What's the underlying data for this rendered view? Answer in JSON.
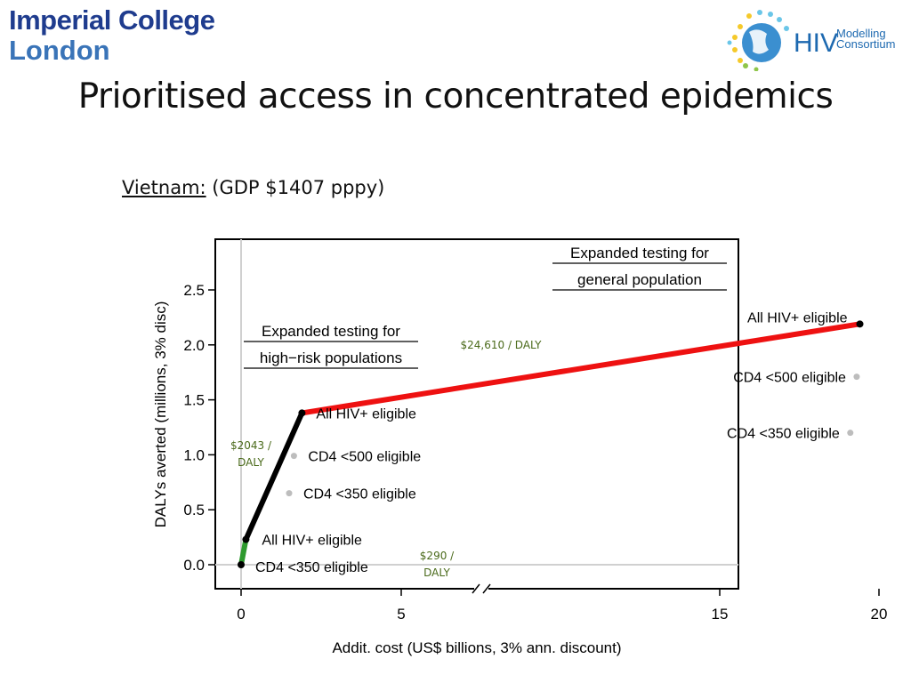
{
  "header": {
    "logo_left_line1": "Imperial College",
    "logo_left_line2": "London",
    "logo_right_main": "HIV",
    "logo_right_sub1": "Modelling",
    "logo_right_sub2": "Consortium"
  },
  "slide": {
    "title": "Prioritised access in concentrated epidemics",
    "subtitle_country": "Vietnam:",
    "subtitle_detail": "(GDP $1407 pppy)"
  },
  "colors": {
    "green": "#2e9a2e",
    "black": "#000000",
    "red": "#ee1111",
    "grey_point": "#bdbdbd",
    "annotation": "#4a6a1a"
  },
  "chart_data": {
    "type": "line",
    "xlabel": "Addit. cost (US$ billions, 3% ann. discount)",
    "ylabel": "DALYs averted (millions, 3% disc)",
    "x_ticks": [
      0,
      5,
      15,
      20
    ],
    "y_ticks": [
      "0.0",
      "0.5",
      "1.0",
      "1.5",
      "2.0",
      "2.5"
    ],
    "x_axis_break": true,
    "ylim": [
      -0.2,
      2.95
    ],
    "frontier": [
      {
        "from": [
          0,
          0
        ],
        "to": [
          0.15,
          0.23
        ],
        "color": "green"
      },
      {
        "from": [
          0.15,
          0.23
        ],
        "to": [
          1.9,
          1.38
        ],
        "color": "black"
      },
      {
        "from": [
          1.9,
          1.38
        ],
        "to": [
          19.4,
          2.19
        ],
        "color": "red"
      }
    ],
    "points": [
      {
        "x": 0,
        "y": 0,
        "label": "CD4 <350 eligible",
        "on_frontier": true
      },
      {
        "x": 0.15,
        "y": 0.23,
        "label": "All HIV+ eligible",
        "on_frontier": true
      },
      {
        "x": 1.5,
        "y": 0.65,
        "label": "CD4 <350 eligible",
        "on_frontier": false
      },
      {
        "x": 1.65,
        "y": 0.99,
        "label": "CD4 <500 eligible",
        "on_frontier": false
      },
      {
        "x": 1.9,
        "y": 1.38,
        "label": "All HIV+ eligible",
        "on_frontier": true
      },
      {
        "x": 19.1,
        "y": 1.2,
        "label": "CD4 <350 eligible",
        "on_frontier": false
      },
      {
        "x": 19.3,
        "y": 1.71,
        "label": "CD4 <500 eligible",
        "on_frontier": false
      },
      {
        "x": 19.4,
        "y": 2.19,
        "label": "All HIV+ eligible",
        "on_frontier": true
      }
    ],
    "group_labels": [
      {
        "line1": "Expanded testing for",
        "line2": "high−risk populations"
      },
      {
        "line1": "Expanded testing for",
        "line2": "general population"
      }
    ],
    "icer_annotations": [
      {
        "line1": "$290 /",
        "line2": "DALY"
      },
      {
        "line1": "$2043 /",
        "line2": "DALY"
      },
      {
        "line1": "$24,610 / DALY",
        "line2": ""
      }
    ]
  }
}
